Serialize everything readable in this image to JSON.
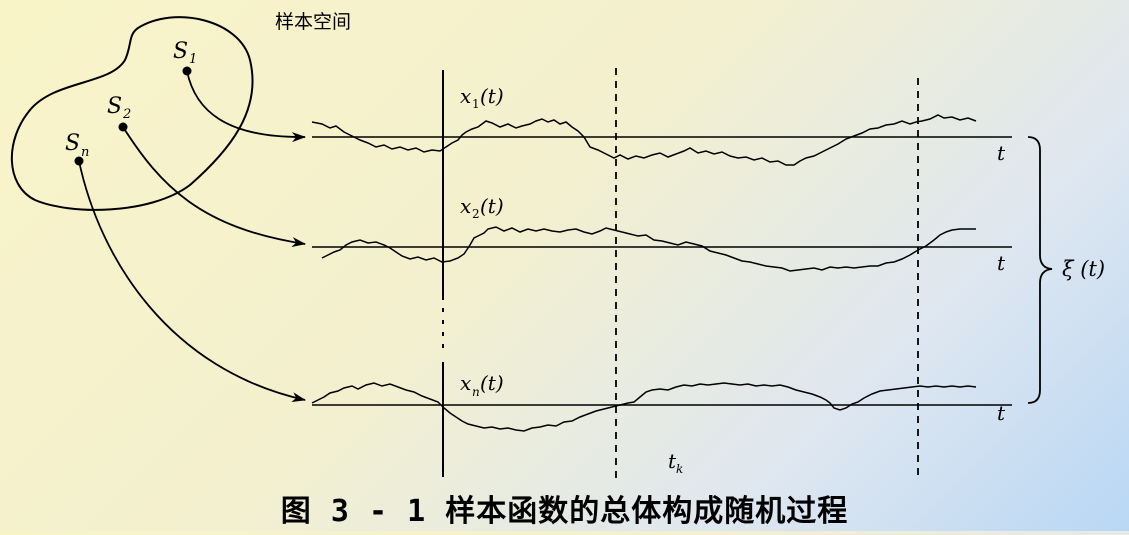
{
  "diagram": {
    "sample_space_label": "样本空间",
    "samples": [
      {
        "letter": "S",
        "sub": "1"
      },
      {
        "letter": "S",
        "sub": "2"
      },
      {
        "letter": "S",
        "sub": "n"
      }
    ],
    "curves": [
      {
        "name": "x",
        "sub": "1",
        "arg": "(t)",
        "axis": "t"
      },
      {
        "name": "x",
        "sub": "2",
        "arg": "(t)",
        "axis": "t"
      },
      {
        "name": "x",
        "sub": "n",
        "arg": "(t)",
        "axis": "t"
      }
    ],
    "time_label": {
      "letter": "t",
      "sub": "k"
    },
    "process_label": "ξ (t)",
    "colors": {
      "stroke": "#000000"
    }
  },
  "caption": "图 3 - 1  样本函数的总体构成随机过程"
}
